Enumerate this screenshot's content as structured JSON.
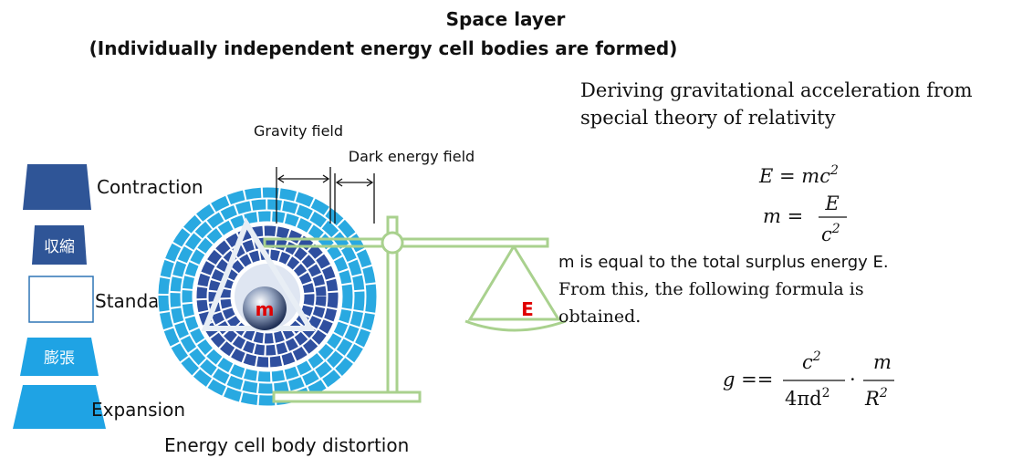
{
  "header": {
    "title": "Space layer",
    "subtitle": "(Individually independent energy cell bodies are formed)"
  },
  "diagram": {
    "gravity_field": "Gravity field",
    "dark_energy_field": "Dark energy field",
    "levels": [
      "Contraction",
      "収縮",
      "Standard",
      "膨張",
      "Expansion"
    ],
    "mass_label": "m",
    "energy_label": "E",
    "caption": "Energy cell body distortion"
  },
  "derivation": {
    "heading": [
      "Deriving gravitational acceleration from",
      "special theory of relativity"
    ],
    "formula1": {
      "text": "E = mc",
      "sup": "2"
    },
    "formula2": {
      "lhs": "m =",
      "num": "E",
      "den": "c",
      "den_sup": "2"
    },
    "statement": "m is equal to the total surplus energy E.",
    "conclusion": [
      "From this, the following formula is",
      "obtained."
    ],
    "formula3": {
      "lhs": "g ==",
      "num1": "c",
      "num1_sup": "2",
      "den1": "4πd",
      "den1_sup": "2",
      "op": "·",
      "num2": "m",
      "den2": "R",
      "den2_sup": "2"
    }
  }
}
